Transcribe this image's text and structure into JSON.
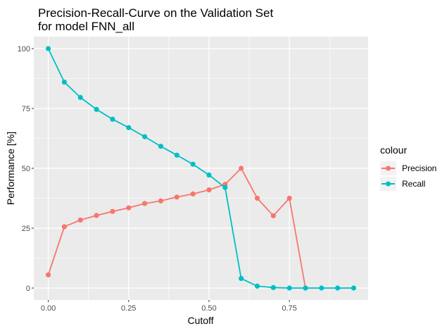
{
  "chart_data": {
    "type": "line",
    "title": "Precision-Recall-Curve on the Validation Set",
    "subtitle": "for model FNN_all",
    "xlabel": "Cutoff",
    "ylabel": "Performance [%]",
    "xlim": [
      -0.045,
      0.995
    ],
    "ylim": [
      -5,
      105
    ],
    "x_ticks": [
      0.0,
      0.25,
      0.5,
      0.75
    ],
    "x_tick_labels": [
      "0.00",
      "0.25",
      "0.50",
      "0.75"
    ],
    "y_ticks": [
      0,
      25,
      50,
      75,
      100
    ],
    "y_tick_labels": [
      "0",
      "25",
      "50",
      "75",
      "100"
    ],
    "grid": true,
    "legend": {
      "title": "colour",
      "position": "right"
    },
    "x": [
      0.0,
      0.05,
      0.1,
      0.15,
      0.2,
      0.25,
      0.3,
      0.35,
      0.4,
      0.45,
      0.5,
      0.55,
      0.6,
      0.65,
      0.7,
      0.75,
      0.8,
      0.85,
      0.9,
      0.95
    ],
    "series": [
      {
        "name": "Precision",
        "color": "#F8766D",
        "values": [
          5.5,
          25.6,
          28.4,
          30.3,
          32.0,
          33.5,
          35.3,
          36.4,
          38.0,
          39.3,
          41.0,
          43.3,
          50.0,
          37.5,
          30.2,
          37.5,
          0,
          null,
          null,
          null
        ]
      },
      {
        "name": "Recall",
        "color": "#00BFC4",
        "values": [
          100.0,
          86.0,
          79.6,
          74.6,
          70.5,
          67.0,
          63.2,
          59.2,
          55.5,
          51.7,
          47.2,
          42.0,
          4.0,
          0.8,
          0.2,
          0.0,
          0.0,
          0.0,
          0.0,
          0.0
        ]
      }
    ]
  }
}
